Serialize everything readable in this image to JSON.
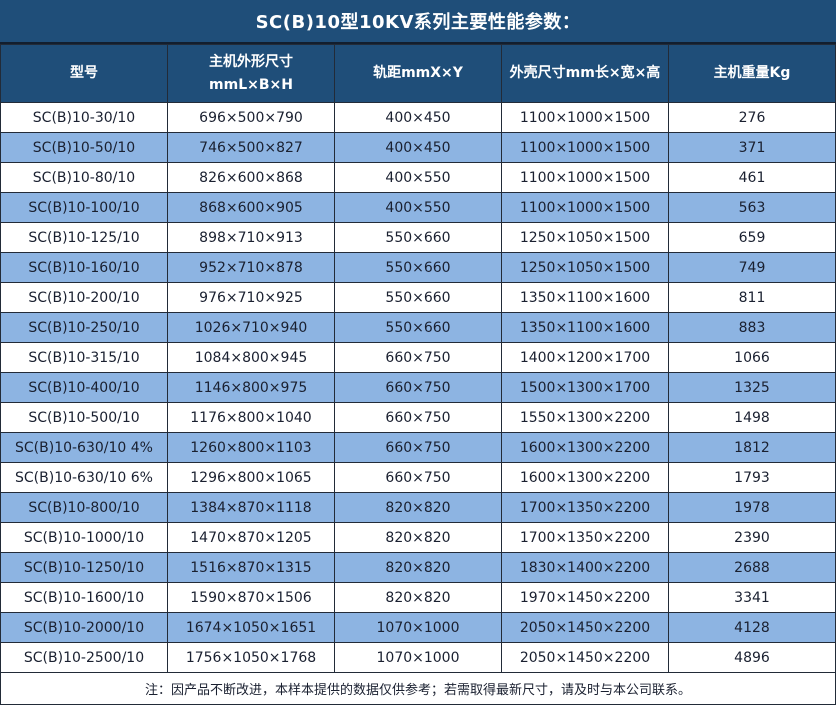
{
  "title": "SC(B)10型10KV系列主要性能参数：",
  "table": {
    "headers": [
      "型号",
      "主机外形尺寸\nmmL×B×H",
      "轨距mmX×Y",
      "外壳尺寸mm长×宽×高",
      "主机重量Kg"
    ],
    "rows": [
      [
        "SC(B)10-30/10",
        "696×500×790",
        "400×450",
        "1100×1000×1500",
        "276"
      ],
      [
        "SC(B)10-50/10",
        "746×500×827",
        "400×450",
        "1100×1000×1500",
        "371"
      ],
      [
        "SC(B)10-80/10",
        "826×600×868",
        "400×550",
        "1100×1000×1500",
        "461"
      ],
      [
        "SC(B)10-100/10",
        "868×600×905",
        "400×550",
        "1100×1000×1500",
        "563"
      ],
      [
        "SC(B)10-125/10",
        "898×710×913",
        "550×660",
        "1250×1050×1500",
        "659"
      ],
      [
        "SC(B)10-160/10",
        "952×710×878",
        "550×660",
        "1250×1050×1500",
        "749"
      ],
      [
        "SC(B)10-200/10",
        "976×710×925",
        "550×660",
        "1350×1100×1600",
        "811"
      ],
      [
        "SC(B)10-250/10",
        "1026×710×940",
        "550×660",
        "1350×1100×1600",
        "883"
      ],
      [
        "SC(B)10-315/10",
        "1084×800×945",
        "660×750",
        "1400×1200×1700",
        "1066"
      ],
      [
        "SC(B)10-400/10",
        "1146×800×975",
        "660×750",
        "1500×1300×1700",
        "1325"
      ],
      [
        "SC(B)10-500/10",
        "1176×800×1040",
        "660×750",
        "1550×1300×2200",
        "1498"
      ],
      [
        "SC(B)10-630/10 4%",
        "1260×800×1103",
        "660×750",
        "1600×1300×2200",
        "1812"
      ],
      [
        "SC(B)10-630/10 6%",
        "1296×800×1065",
        "660×750",
        "1600×1300×2200",
        "1793"
      ],
      [
        "SC(B)10-800/10",
        "1384×870×1118",
        "820×820",
        "1700×1350×2200",
        "1978"
      ],
      [
        "SC(B)10-1000/10",
        "1470×870×1205",
        "820×820",
        "1700×1350×2200",
        "2390"
      ],
      [
        "SC(B)10-1250/10",
        "1516×870×1315",
        "820×820",
        "1830×1400×2200",
        "2688"
      ],
      [
        "SC(B)10-1600/10",
        "1590×870×1506",
        "820×820",
        "1970×1450×2200",
        "3341"
      ],
      [
        "SC(B)10-2000/10",
        "1674×1050×1651",
        "1070×1000",
        "2050×1450×2200",
        "4128"
      ],
      [
        "SC(B)10-2500/10",
        "1756×1050×1768",
        "1070×1000",
        "2050×1450×2200",
        "4896"
      ]
    ],
    "footnote": "注：因产品不断改进，本样本提供的数据仅供参考；若需取得最新尺寸，请及时与本公司联系。"
  },
  "colors": {
    "header_bg": "#1f4e79",
    "header_text": "#ffffff",
    "row_bg": "#ffffff",
    "row_alt_bg": "#8db4e2",
    "border": "#222b38",
    "cell_text": "#1a2030"
  }
}
